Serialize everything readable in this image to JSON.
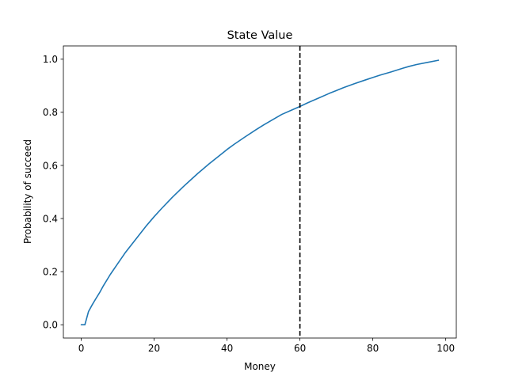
{
  "chart_data": {
    "type": "line",
    "title": "State Value",
    "xlabel": "Money",
    "ylabel": "Probability of succeed",
    "xlim": [
      -4.9,
      102.9
    ],
    "ylim": [
      -0.05,
      1.05
    ],
    "xticks": [
      0,
      20,
      40,
      60,
      80,
      100
    ],
    "yticks": [
      0.0,
      0.2,
      0.4,
      0.6,
      0.8,
      1.0
    ],
    "xtick_labels": [
      "0",
      "20",
      "40",
      "60",
      "80",
      "100"
    ],
    "ytick_labels": [
      "0.0",
      "0.2",
      "0.4",
      "0.6",
      "0.8",
      "1.0"
    ],
    "grid": false,
    "series": [
      {
        "color": "#1f77b4",
        "x": [
          0,
          1,
          2,
          3,
          4,
          5,
          6,
          8,
          10,
          12,
          14,
          16,
          18,
          20,
          22,
          25,
          28,
          30,
          32,
          35,
          38,
          40,
          42,
          45,
          48,
          50,
          52,
          55,
          58,
          60,
          62,
          65,
          68,
          70,
          72,
          75,
          78,
          80,
          82,
          85,
          88,
          90,
          92,
          95,
          98
        ],
        "y": [
          0.0,
          0.0,
          0.05,
          0.075,
          0.098,
          0.12,
          0.145,
          0.19,
          0.23,
          0.27,
          0.305,
          0.34,
          0.375,
          0.407,
          0.437,
          0.48,
          0.52,
          0.545,
          0.57,
          0.605,
          0.638,
          0.66,
          0.68,
          0.708,
          0.735,
          0.752,
          0.768,
          0.792,
          0.81,
          0.822,
          0.835,
          0.853,
          0.871,
          0.882,
          0.893,
          0.908,
          0.922,
          0.931,
          0.94,
          0.952,
          0.965,
          0.973,
          0.98,
          0.988,
          0.996
        ]
      }
    ],
    "vlines": [
      {
        "x": 60,
        "style": "dashed",
        "color": "#000000"
      }
    ]
  }
}
